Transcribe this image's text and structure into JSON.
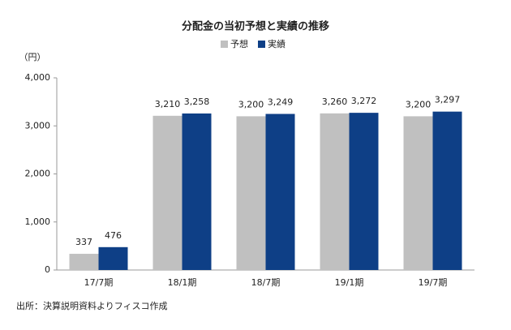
{
  "chart_data": {
    "type": "bar",
    "title": "分配金の当初予想と実績の推移",
    "y_unit": "（円）",
    "categories": [
      "17/7期",
      "18/1期",
      "18/7期",
      "19/1期",
      "19/7期"
    ],
    "series": [
      {
        "name": "予想",
        "color": "#c0c0c0",
        "values": [
          337,
          3210,
          3200,
          3260,
          3200
        ],
        "value_labels": [
          "337",
          "3,210",
          "3,200",
          "3,260",
          "3,200"
        ]
      },
      {
        "name": "実績",
        "color": "#0e3f86",
        "values": [
          476,
          3258,
          3249,
          3272,
          3297
        ],
        "value_labels": [
          "476",
          "3,258",
          "3,249",
          "3,272",
          "3,297"
        ]
      }
    ],
    "ylim": [
      0,
      4000
    ],
    "yticks": [
      0,
      {
        "value": 1000,
        "label": "1,000"
      },
      {
        "value": 2000,
        "label": "2,000"
      },
      {
        "value": 3000,
        "label": "3,000"
      },
      {
        "value": 4000,
        "label": "4,000"
      }
    ],
    "grid": false,
    "legend": "top",
    "source": "出所：決算説明資料よりフィスコ作成"
  }
}
